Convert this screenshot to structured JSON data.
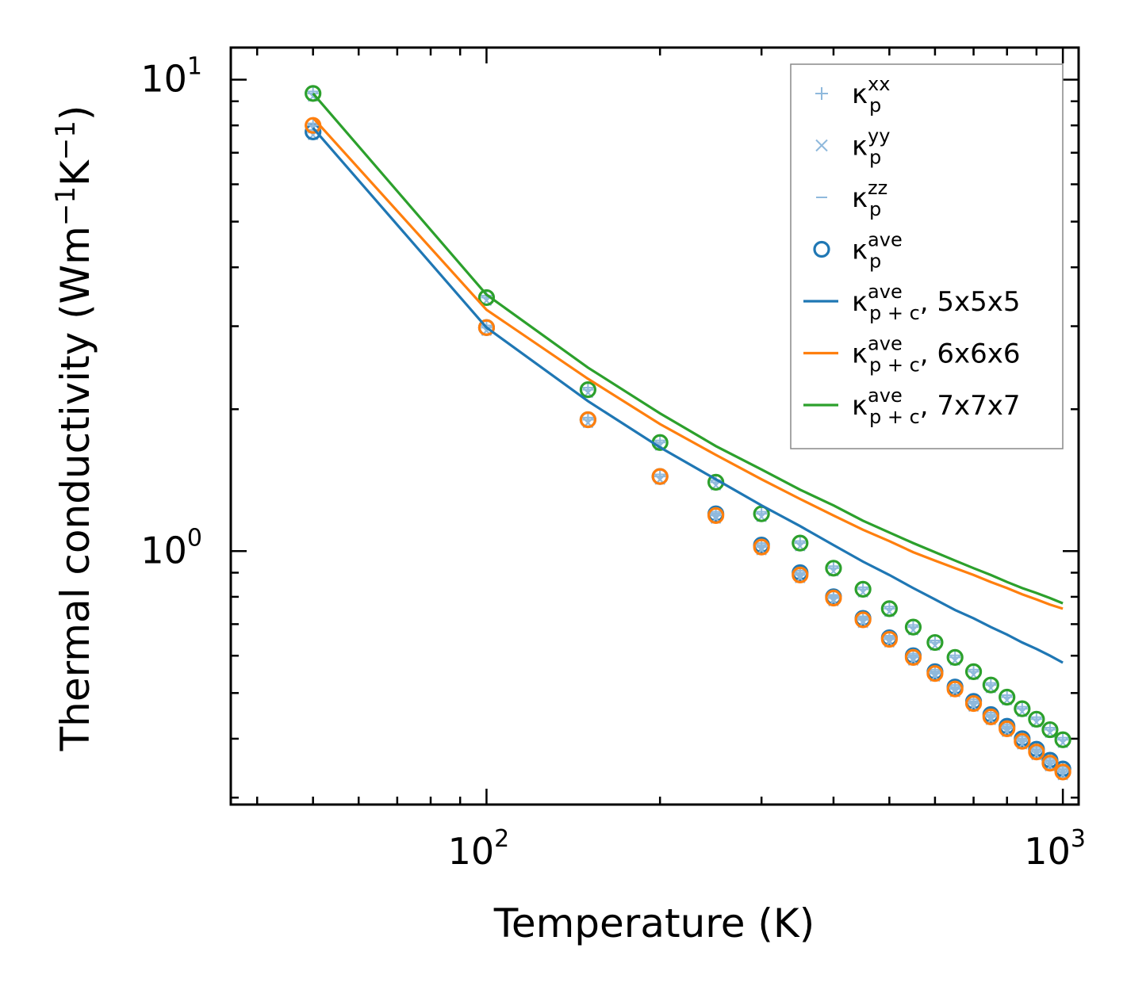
{
  "chart_data": {
    "type": "line",
    "title": "",
    "xlabel": "Temperature (K)",
    "ylabel": "Thermal conductivity (Wm",
    "ylabel_parts": {
      "base": "Thermal conductivity (Wm",
      "exp1": "−1",
      "mid": "K",
      "exp2": "−1",
      "end": ")"
    },
    "xscale": "log",
    "yscale": "log",
    "xlim": [
      36,
      1065
    ],
    "ylim": [
      0.29,
      11.7
    ],
    "x_ticks": [
      {
        "base": "10",
        "exp": "2",
        "value": 100
      },
      {
        "base": "10",
        "exp": "3",
        "value": 1000
      }
    ],
    "y_ticks": [
      {
        "base": "10",
        "exp": "0",
        "value": 1
      },
      {
        "base": "10",
        "exp": "1",
        "value": 10
      }
    ],
    "legend_position": "top-right",
    "legend": [
      {
        "marker": "plus",
        "sym": "κ",
        "sub": "p",
        "sup": "xx",
        "suffix": ""
      },
      {
        "marker": "x",
        "sym": "κ",
        "sub": "p",
        "sup": "yy",
        "suffix": ""
      },
      {
        "marker": "dash",
        "sym": "κ",
        "sub": "p",
        "sup": "zz",
        "suffix": ""
      },
      {
        "marker": "circle",
        "sym": "κ",
        "sub": "p",
        "sup": "ave",
        "suffix": ""
      },
      {
        "marker": "line-blue",
        "sym": "κ",
        "sub": "p + c",
        "sup": "ave",
        "suffix": ", 5x5x5"
      },
      {
        "marker": "line-orange",
        "sym": "κ",
        "sub": "p + c",
        "sup": "ave",
        "suffix": ", 6x6x6"
      },
      {
        "marker": "line-green",
        "sym": "κ",
        "sub": "p + c",
        "sup": "ave",
        "suffix": ", 7x7x7"
      }
    ],
    "colors": {
      "blue": "#1f77b4",
      "orange": "#ff7f0e",
      "green": "#2ca02c",
      "light_blue": "#8fb9dc"
    },
    "x": [
      50,
      100,
      150,
      200,
      250,
      300,
      350,
      400,
      450,
      500,
      550,
      600,
      650,
      700,
      750,
      800,
      850,
      900,
      950,
      1000
    ],
    "series": [
      {
        "name": "κp ave 5x5x5",
        "kind": "markers",
        "color": "#1f77b4",
        "values": [
          7.75,
          2.98,
          1.9,
          1.44,
          1.2,
          1.03,
          0.9,
          0.8,
          0.72,
          0.655,
          0.6,
          0.555,
          0.515,
          0.48,
          0.45,
          0.425,
          0.4,
          0.38,
          0.36,
          0.345
        ]
      },
      {
        "name": "κp ave 6x6x6",
        "kind": "markers",
        "color": "#ff7f0e",
        "values": [
          8.0,
          2.98,
          1.9,
          1.44,
          1.19,
          1.02,
          0.89,
          0.795,
          0.715,
          0.65,
          0.595,
          0.55,
          0.51,
          0.475,
          0.445,
          0.42,
          0.395,
          0.375,
          0.355,
          0.34
        ]
      },
      {
        "name": "κp ave 7x7x7",
        "kind": "markers",
        "color": "#2ca02c",
        "values": [
          9.35,
          3.45,
          2.2,
          1.7,
          1.4,
          1.2,
          1.04,
          0.92,
          0.83,
          0.755,
          0.69,
          0.64,
          0.595,
          0.555,
          0.52,
          0.49,
          0.463,
          0.44,
          0.418,
          0.398
        ]
      },
      {
        "name": "κp+c ave, 5x5x5",
        "kind": "line",
        "color": "#1f77b4",
        "values": [
          7.9,
          2.98,
          2.08,
          1.66,
          1.42,
          1.25,
          1.13,
          1.03,
          0.95,
          0.89,
          0.835,
          0.79,
          0.75,
          0.72,
          0.69,
          0.665,
          0.64,
          0.62,
          0.6,
          0.58
        ]
      },
      {
        "name": "κp+c ave, 6x6x6",
        "kind": "line",
        "color": "#ff7f0e",
        "values": [
          8.3,
          3.25,
          2.32,
          1.86,
          1.6,
          1.42,
          1.29,
          1.19,
          1.11,
          1.05,
          0.995,
          0.955,
          0.92,
          0.89,
          0.86,
          0.835,
          0.81,
          0.79,
          0.77,
          0.755
        ]
      },
      {
        "name": "κp+c ave, 7x7x7",
        "kind": "line",
        "color": "#2ca02c",
        "values": [
          9.35,
          3.5,
          2.45,
          1.96,
          1.67,
          1.49,
          1.35,
          1.25,
          1.16,
          1.095,
          1.04,
          0.995,
          0.955,
          0.92,
          0.89,
          0.86,
          0.835,
          0.815,
          0.795,
          0.775
        ]
      }
    ]
  }
}
